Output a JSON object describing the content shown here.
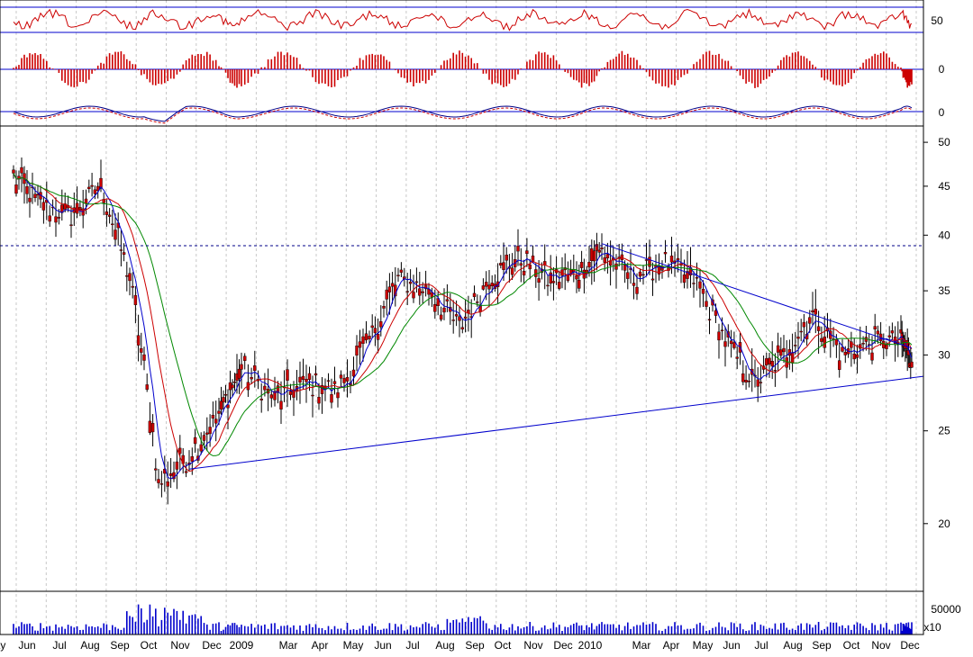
{
  "chart_data": {
    "type": "candlestick",
    "colors": {
      "candle": "#cc0000",
      "ma_short": "#0000cc",
      "ma_mid": "#cc0000",
      "ma_long": "#008800",
      "trendline": "#0000cc",
      "resistance_dotted": "#000088",
      "volume": "#0000cc",
      "osc_line": "#cc0000",
      "histogram": "#cc0000",
      "macd_signal": "#000088",
      "grid": "#c8c8c8",
      "background": "#ffffff"
    },
    "x_labels": [
      "ay",
      "Jun",
      "Jul",
      "Aug",
      "Sep",
      "Oct",
      "Nov",
      "Dec",
      "2009",
      "Mar",
      "Apr",
      "May",
      "Jun",
      "Jul",
      "Aug",
      "Sep",
      "Oct",
      "Nov",
      "Dec",
      "2010",
      "Mar",
      "Apr",
      "May",
      "Jun",
      "Jul",
      "Aug",
      "Sep",
      "Oct",
      "Nov",
      "Dec"
    ],
    "price_panel": {
      "y_ticks": [
        "20",
        "25",
        "30",
        "35",
        "40",
        "45",
        "50"
      ],
      "scale": "log",
      "ylim": [
        17,
        52
      ],
      "resistance_level": 39,
      "trendline_upper": {
        "start": {
          "month": "Jan 2010",
          "value": 39.2
        },
        "end": {
          "month": "Dec 2010",
          "value": 30.5
        }
      },
      "trendline_lower": {
        "start": {
          "month": "Nov 2008",
          "value": 22.8
        },
        "end": {
          "month": "Dec 2010",
          "value": 28.5
        }
      },
      "monthly_close": [
        {
          "month": "May 2008",
          "value": 46
        },
        {
          "month": "Jun 2008",
          "value": 43
        },
        {
          "month": "Jul 2008",
          "value": 42
        },
        {
          "month": "Aug 2008",
          "value": 45
        },
        {
          "month": "Sep 2008",
          "value": 36
        },
        {
          "month": "Oct 2008",
          "value": 22
        },
        {
          "month": "Nov 2008",
          "value": 23.5
        },
        {
          "month": "Dec 2008",
          "value": 26
        },
        {
          "month": "Jan 2009",
          "value": 29
        },
        {
          "month": "Feb 2009",
          "value": 27
        },
        {
          "month": "Mar 2009",
          "value": 28
        },
        {
          "month": "Apr 2009",
          "value": 27.5
        },
        {
          "month": "May 2009",
          "value": 31
        },
        {
          "month": "Jun 2009",
          "value": 36
        },
        {
          "month": "Jul 2009",
          "value": 35
        },
        {
          "month": "Aug 2009",
          "value": 32
        },
        {
          "month": "Sep 2009",
          "value": 36
        },
        {
          "month": "Oct 2009",
          "value": 38
        },
        {
          "month": "Nov 2009",
          "value": 36
        },
        {
          "month": "Dec 2009",
          "value": 36.5
        },
        {
          "month": "Jan 2010",
          "value": 38.5
        },
        {
          "month": "Feb 2010",
          "value": 36
        },
        {
          "month": "Mar 2010",
          "value": 37.5
        },
        {
          "month": "Apr 2010",
          "value": 36
        },
        {
          "month": "May 2010",
          "value": 31
        },
        {
          "month": "Jun 2010",
          "value": 28
        },
        {
          "month": "Jul 2010",
          "value": 30
        },
        {
          "month": "Aug 2010",
          "value": 33
        },
        {
          "month": "Sep 2010",
          "value": 30
        },
        {
          "month": "Oct 2010",
          "value": 31
        },
        {
          "month": "Nov 2010",
          "value": 31
        },
        {
          "month": "Dec 2010",
          "value": 29.5
        }
      ]
    },
    "indicator_panels": [
      {
        "name": "RSI",
        "tick_label": "50",
        "level": 50
      },
      {
        "name": "Histogram",
        "tick_label": "0",
        "level": 0
      },
      {
        "name": "MACD",
        "tick_label": "0",
        "level": 0
      }
    ],
    "volume_panel": {
      "tick_label": "50000",
      "multiplier_label": "x10"
    }
  }
}
